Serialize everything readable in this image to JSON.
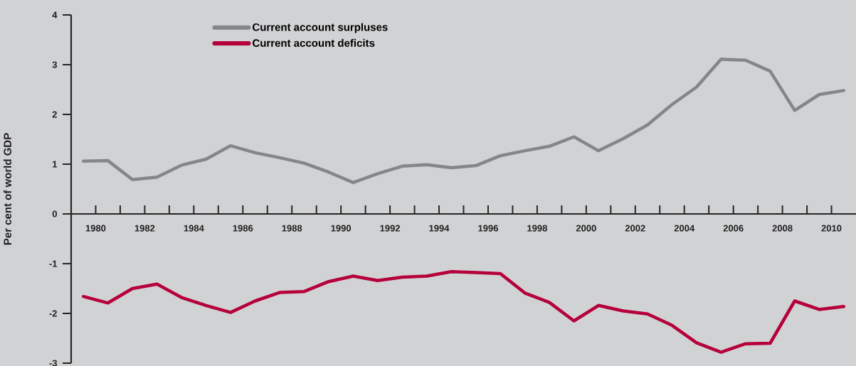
{
  "chart_data": {
    "type": "line",
    "ylabel": "Per cent of world GDP",
    "x": [
      1979.5,
      1980.5,
      1981.5,
      1982.5,
      1983.5,
      1984.5,
      1985.5,
      1986.5,
      1987.5,
      1988.5,
      1989.5,
      1990.5,
      1991.5,
      1992.5,
      1993.5,
      1994.5,
      1995.5,
      1996.5,
      1997.5,
      1998.5,
      1999.5,
      2000.5,
      2001.5,
      2002.5,
      2003.5,
      2004.5,
      2005.5,
      2006.5,
      2007.5,
      2008.5,
      2009.5,
      2010.5
    ],
    "series": [
      {
        "name": "Current account surpluses",
        "color": "#858688",
        "values": [
          1.06,
          1.07,
          0.69,
          0.74,
          0.98,
          1.1,
          1.37,
          1.23,
          1.13,
          1.02,
          0.84,
          0.63,
          0.81,
          0.96,
          0.99,
          0.93,
          0.97,
          1.17,
          1.27,
          1.36,
          1.55,
          1.27,
          1.51,
          1.79,
          2.2,
          2.55,
          3.11,
          3.09,
          2.87,
          2.08,
          2.4,
          2.48
        ]
      },
      {
        "name": "Current account deficits",
        "color": "#b5003a",
        "values": [
          -1.66,
          -1.79,
          -1.5,
          -1.41,
          -1.68,
          -1.84,
          -1.98,
          -1.75,
          -1.58,
          -1.56,
          -1.36,
          -1.25,
          -1.34,
          -1.27,
          -1.25,
          -1.16,
          -1.18,
          -1.2,
          -1.59,
          -1.78,
          -2.15,
          -1.84,
          -1.95,
          -2.01,
          -2.24,
          -2.59,
          -2.78,
          -2.61,
          -2.6,
          -1.75,
          -1.92,
          -1.86
        ]
      }
    ],
    "xlim": [
      1979,
      2011
    ],
    "ylim": [
      -3,
      4
    ],
    "xticks": [
      1980,
      {
        "value": 1981,
        "label": null
      },
      1982,
      {
        "value": 1983,
        "label": null
      },
      1984,
      {
        "value": 1985,
        "label": null
      },
      1986,
      {
        "value": 1987,
        "label": null
      },
      1988,
      {
        "value": 1989,
        "label": null
      },
      1990,
      {
        "value": 1991,
        "label": null
      },
      1992,
      {
        "value": 1993,
        "label": null
      },
      1994,
      {
        "value": 1995,
        "label": null
      },
      1996,
      {
        "value": 1997,
        "label": null
      },
      1998,
      {
        "value": 1999,
        "label": null
      },
      2000,
      {
        "value": 2001,
        "label": null
      },
      2002,
      {
        "value": 2003,
        "label": null
      },
      2004,
      {
        "value": 2005,
        "label": null
      },
      2006,
      {
        "value": 2007,
        "label": null
      },
      2008,
      {
        "value": 2009,
        "label": null
      },
      2010
    ],
    "yticks": [
      -3,
      -2,
      -1,
      0,
      1,
      2,
      3,
      4
    ],
    "legend": "top left"
  }
}
